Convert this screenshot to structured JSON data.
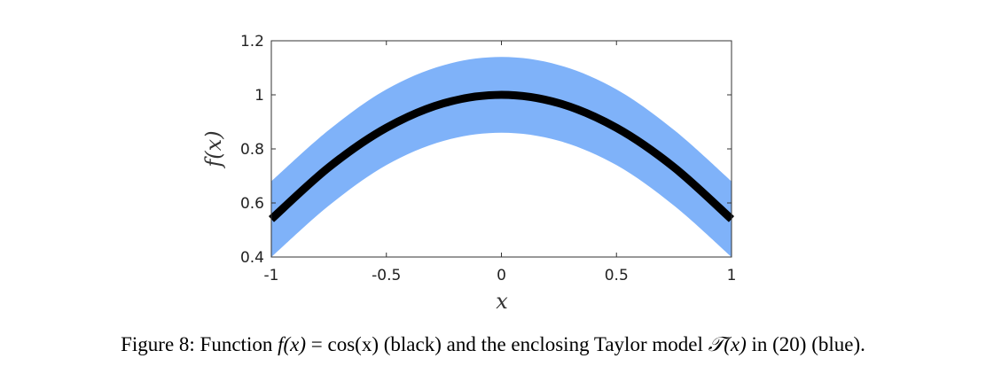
{
  "chart_data": {
    "type": "area",
    "title": "",
    "xlabel": "x",
    "ylabel": "f(x)",
    "xlim": [
      -1,
      1
    ],
    "ylim": [
      0.4,
      1.2
    ],
    "x_ticks": [
      -1,
      -0.5,
      0,
      0.5,
      1
    ],
    "x_tick_labels": [
      "-1",
      "-0.5",
      "0",
      "0.5",
      "1"
    ],
    "y_ticks": [
      0.4,
      0.6,
      0.8,
      1.0,
      1.2
    ],
    "y_tick_labels": [
      "0.4",
      "0.6",
      "0.8",
      "1",
      "1.2"
    ],
    "grid": false,
    "legend": "none",
    "series": [
      {
        "kind": "band",
        "color": "#7fb2f9",
        "x": [
          -1,
          -0.75,
          -0.5,
          -0.25,
          0,
          0.25,
          0.5,
          0.75,
          1
        ],
        "lower": [
          0.4,
          0.59,
          0.74,
          0.83,
          0.86,
          0.83,
          0.74,
          0.59,
          0.4
        ],
        "upper": [
          0.68,
          0.87,
          1.02,
          1.11,
          1.14,
          1.11,
          1.02,
          0.87,
          0.68
        ]
      },
      {
        "kind": "line",
        "color": "#000000",
        "x": [
          -1,
          -0.75,
          -0.5,
          -0.25,
          0,
          0.25,
          0.5,
          0.75,
          1
        ],
        "y": [
          0.54,
          0.732,
          0.878,
          0.969,
          1.0,
          0.969,
          0.878,
          0.732,
          0.54
        ]
      }
    ]
  },
  "caption": {
    "prefix": "Figure 8: Function ",
    "f_of_x": "f(x)",
    "equals": " = ",
    "cos_x": "cos(x)",
    "middle": " (black) and the enclosing Taylor model ",
    "T_of_x": "𝒯(x)",
    "suffix": " in (20) (blue)."
  }
}
